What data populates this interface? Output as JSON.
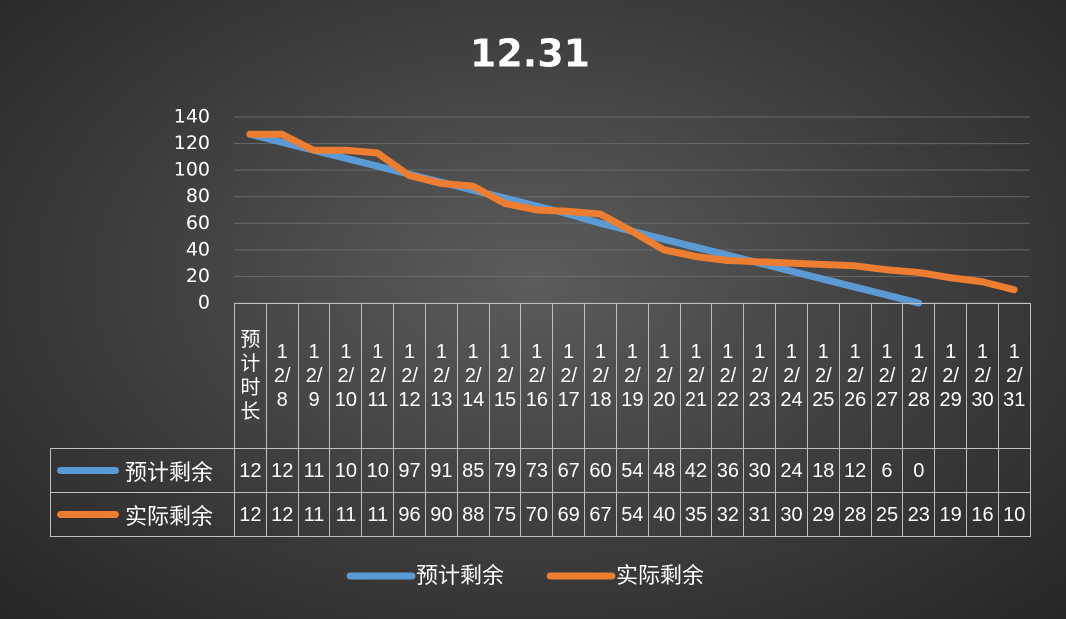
{
  "chart_data": {
    "type": "line",
    "title": "12.31",
    "categories": [
      "预计时长",
      "12/8",
      "12/9",
      "12/10",
      "12/11",
      "12/12",
      "12/13",
      "12/14",
      "12/15",
      "12/16",
      "12/17",
      "12/18",
      "12/19",
      "12/20",
      "12/21",
      "12/22",
      "12/23",
      "12/24",
      "12/25",
      "12/26",
      "12/27",
      "12/28",
      "12/29",
      "12/30",
      "12/31"
    ],
    "series": [
      {
        "name": "预计剩余",
        "color": "#5b9bd5",
        "values": [
          127,
          121,
          115,
          109,
          103,
          97,
          91,
          85,
          79,
          73,
          67,
          60,
          54,
          48,
          42,
          36,
          30,
          24,
          18,
          12,
          6,
          0,
          null,
          null,
          null
        ]
      },
      {
        "name": "实际剩余",
        "color": "#ed7d31",
        "values": [
          127,
          127,
          115,
          115,
          113,
          96,
          90,
          88,
          75,
          70,
          69,
          67,
          54,
          40,
          35,
          32,
          31,
          30,
          29,
          28,
          25,
          23,
          19,
          16,
          10
        ]
      }
    ],
    "ylim": [
      0,
      140
    ],
    "yticks": [
      0,
      20,
      40,
      60,
      80,
      100,
      120,
      140
    ],
    "grid": true,
    "legend": "bottom"
  }
}
